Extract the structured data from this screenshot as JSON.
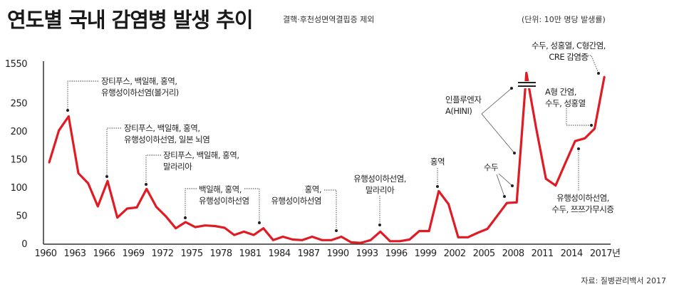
{
  "header": {
    "title": "연도별 국내 감염병 발생 추이",
    "subtitle": "결핵·후천성면역결핍증 제외",
    "unit": "(단위: 10만 명당 발생률)"
  },
  "source": "자료: 질병관리백서 2017",
  "colors": {
    "line": "#e01b24",
    "axis": "#333333"
  },
  "chart_data": {
    "type": "line",
    "title": "연도별 국내 감염병 발생 추이",
    "xlabel": "",
    "ylabel": "10만 명당 발생률",
    "y_axis_break": [
      250,
      1550
    ],
    "ylim": [
      0,
      1550
    ],
    "y_ticks": [
      "0",
      "50",
      "100",
      "150",
      "200",
      "250",
      "1550"
    ],
    "y_tick_values": [
      0,
      50,
      100,
      150,
      200,
      250,
      1550
    ],
    "x_ticks": [
      "1960",
      "1963",
      "1966",
      "1969",
      "1972",
      "1975",
      "1978",
      "1981",
      "1984",
      "1987",
      "1990",
      "1993",
      "1996",
      "1999",
      "2002",
      "2005",
      "2008",
      "2011",
      "2014",
      "2017년"
    ],
    "x_tick_values": [
      1960,
      1963,
      1966,
      1969,
      1972,
      1975,
      1978,
      1981,
      1984,
      1987,
      1990,
      1993,
      1996,
      1999,
      2002,
      2005,
      2008,
      2011,
      2014,
      2017
    ],
    "x": [
      1960,
      1961,
      1962,
      1963,
      1964,
      1965,
      1966,
      1967,
      1968,
      1969,
      1970,
      1971,
      1972,
      1973,
      1974,
      1975,
      1976,
      1977,
      1978,
      1979,
      1980,
      1981,
      1982,
      1983,
      1984,
      1985,
      1986,
      1987,
      1988,
      1989,
      1990,
      1991,
      1992,
      1993,
      1994,
      1995,
      1996,
      1997,
      1998,
      1999,
      2000,
      2001,
      2002,
      2003,
      2004,
      2005,
      2006,
      2007,
      2008,
      2009,
      2010,
      2011,
      2012,
      2013,
      2014,
      2015,
      2016,
      2017
    ],
    "values": [
      144,
      201,
      226,
      125,
      107,
      66,
      111,
      46,
      62,
      64,
      97,
      65,
      48,
      27,
      38,
      29,
      32,
      31,
      28,
      15,
      21,
      15,
      27,
      6,
      12,
      7,
      6,
      12,
      6,
      6,
      12,
      2,
      1,
      6,
      21,
      4,
      4,
      7,
      22,
      22,
      93,
      70,
      11,
      11,
      19,
      26,
      49,
      72,
      73,
      1230,
      205,
      115,
      103,
      143,
      182,
      187,
      204,
      1100
    ],
    "annotations": [
      {
        "lines": [
          "장티푸스, 백일해, 홍역,",
          "유행성이하선염(볼거리)"
        ]
      },
      {
        "lines": [
          "장티푸스, 백일해, 홍역,",
          "유행성이하선염, 일본 뇌염"
        ]
      },
      {
        "lines": [
          "장티푸스, 백일해, 홍역,",
          "말라리아"
        ]
      },
      {
        "lines": [
          "백일해, 홍역,",
          "유행성이하선염"
        ]
      },
      {
        "lines": [
          "홍역,",
          "유행성이하선염"
        ]
      },
      {
        "lines": [
          "유행성이하선염,",
          "말라리아"
        ]
      },
      {
        "lines": [
          "홍역"
        ]
      },
      {
        "lines": [
          "수두"
        ]
      },
      {
        "lines": [
          "인플루엔자",
          "A(HINI)"
        ]
      },
      {
        "lines": [
          "수두, 성홍열, C형간염,",
          "CRE 감염증"
        ]
      },
      {
        "lines": [
          "A형 간염,",
          "수두, 성홍열"
        ]
      },
      {
        "lines": [
          "유행성이하선염,",
          "수두, 쯔쯔가무시증"
        ]
      }
    ]
  }
}
